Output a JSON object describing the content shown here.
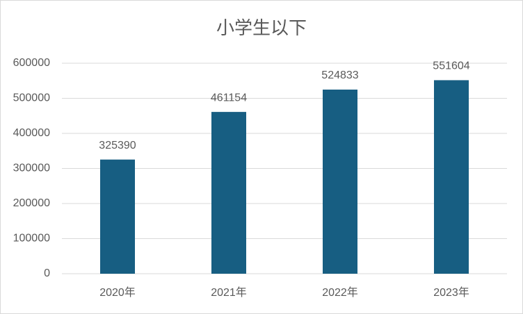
{
  "chart_data": {
    "type": "bar",
    "title": "小学生以下",
    "categories": [
      "2020年",
      "2021年",
      "2022年",
      "2023年"
    ],
    "values": [
      325390,
      461154,
      524833,
      551604
    ],
    "color": "#175e82",
    "ylim": [
      0,
      600000
    ],
    "yticks": [
      0,
      100000,
      200000,
      300000,
      400000,
      500000,
      600000
    ],
    "grid": true
  }
}
